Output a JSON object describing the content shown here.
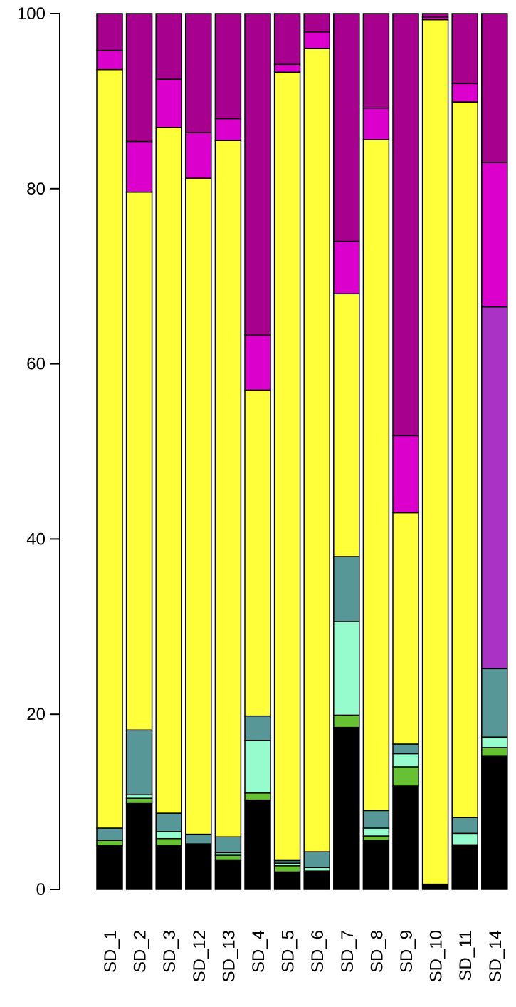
{
  "chart_data": {
    "type": "stacked_bar",
    "categories": [
      "SD_1",
      "SD_2",
      "SD_3",
      "SD_12",
      "SD_13",
      "SD_4",
      "SD_5",
      "SD_6",
      "SD_7",
      "SD_8",
      "SD_9",
      "SD_10",
      "SD_11",
      "SD_14"
    ],
    "series": [
      {
        "color": "#000000",
        "values": [
          5,
          9.8,
          5,
          5.2,
          3.3,
          10.2,
          2,
          2.1,
          18.5,
          5.6,
          11.8,
          0.6,
          5.1,
          15.2
        ]
      },
      {
        "color": "#66c232",
        "values": [
          0.6,
          0.6,
          0.8,
          0,
          0.6,
          0.8,
          0.7,
          0,
          1.4,
          0.5,
          2.2,
          0,
          0,
          1
        ]
      },
      {
        "color": "#96fcce",
        "values": [
          0,
          0.4,
          0.8,
          0,
          0.3,
          6,
          0.3,
          0.4,
          10.7,
          0.9,
          1.5,
          0,
          1.3,
          1.2
        ]
      },
      {
        "color": "#579797",
        "values": [
          1.4,
          7.4,
          2.1,
          1.1,
          1.8,
          2.8,
          0.3,
          1.8,
          7.4,
          2,
          1.1,
          0,
          1.8,
          7.8
        ]
      },
      {
        "color": "#aa32c4",
        "values": [
          0,
          0,
          0,
          0,
          0,
          0,
          0,
          0,
          0,
          0,
          0,
          0,
          0,
          41.3
        ]
      },
      {
        "color": "#ffff3a",
        "values": [
          86.6,
          61.4,
          78.3,
          74.9,
          79.5,
          37.2,
          90,
          91.7,
          30,
          76.6,
          26.4,
          98.7,
          81.7,
          0
        ]
      },
      {
        "color": "#dc00cc",
        "values": [
          2.2,
          5.8,
          5.5,
          5.2,
          2.5,
          6.3,
          0.9,
          1.9,
          6,
          3.6,
          8.8,
          0.3,
          2.1,
          16.5
        ]
      },
      {
        "color": "#a8008e",
        "values": [
          4.2,
          14.6,
          7.5,
          13.6,
          12,
          36.7,
          5.8,
          2.1,
          26,
          10.8,
          48.2,
          0.4,
          8,
          17
        ]
      }
    ],
    "ylim": [
      0,
      100
    ],
    "yticks": [
      0,
      20,
      40,
      60,
      80,
      100
    ]
  }
}
